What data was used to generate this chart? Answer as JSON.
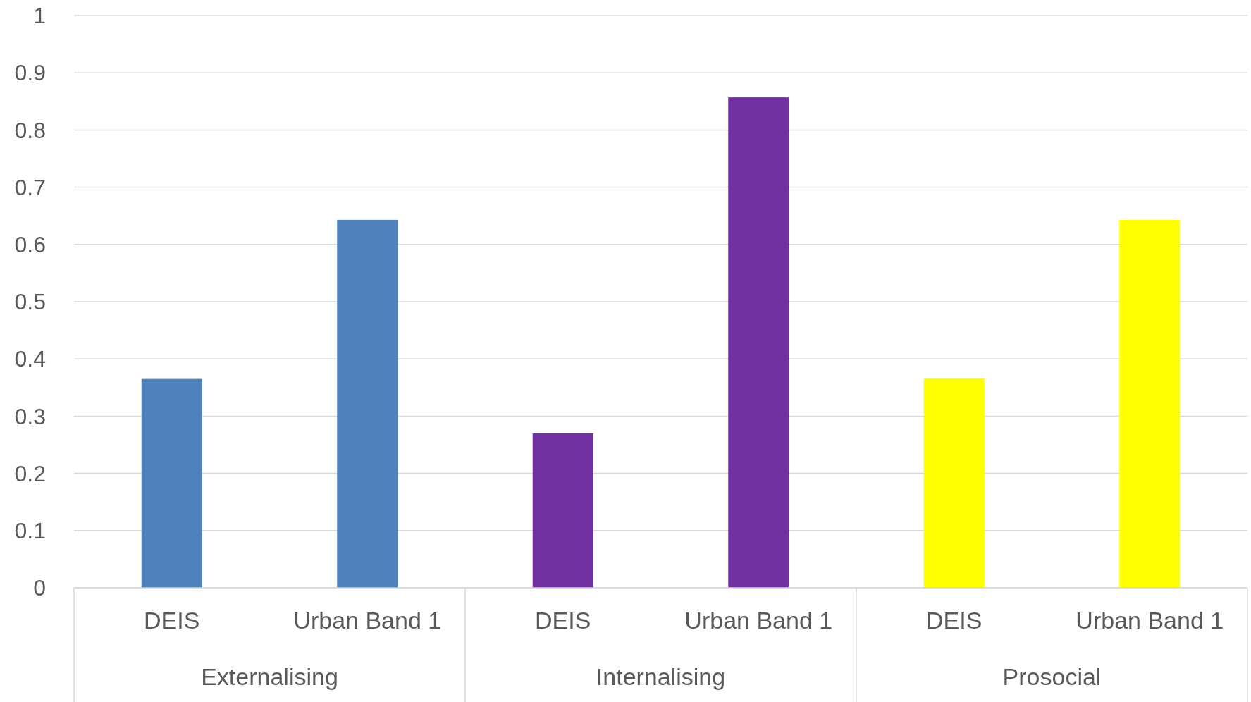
{
  "chart_data": {
    "type": "bar",
    "categories": [
      "DEIS",
      "Urban Band 1",
      "DEIS",
      "Urban Band 1",
      "DEIS",
      "Urban Band 1"
    ],
    "values": [
      0.365,
      0.643,
      0.27,
      0.857,
      0.366,
      0.643
    ],
    "colors": [
      "#4f81bd",
      "#4f81bd",
      "#7030a0",
      "#7030a0",
      "#ffff00",
      "#ffff00"
    ],
    "ylim": [
      0,
      1
    ],
    "yticks": [
      0,
      0.1,
      0.2,
      0.3,
      0.4,
      0.5,
      0.6,
      0.7,
      0.8,
      0.9,
      1
    ],
    "grid": "y",
    "annotations": [
      "Externalising",
      "Internalising",
      "Prosocial"
    ]
  }
}
